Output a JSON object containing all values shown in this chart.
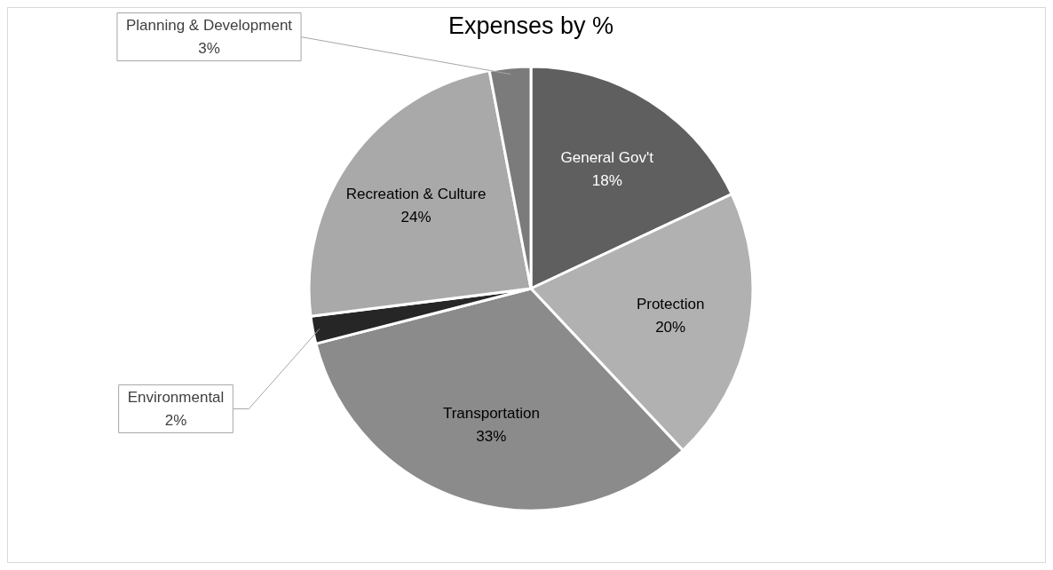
{
  "chart_data": {
    "type": "pie",
    "title": "Expenses by %",
    "categories": [
      "General Gov't",
      "Protection",
      "Transportation",
      "Environmental",
      "Recreation & Culture",
      "Planning & Development"
    ],
    "values": [
      18,
      20,
      33,
      2,
      24,
      3
    ],
    "value_labels": [
      "18%",
      "20%",
      "33%",
      "2%",
      "24%",
      "3%"
    ],
    "colors": [
      "#5f5f5f",
      "#b1b1b1",
      "#8b8b8b",
      "#262626",
      "#a9a9a9",
      "#7b7b7b"
    ],
    "legend": false
  }
}
